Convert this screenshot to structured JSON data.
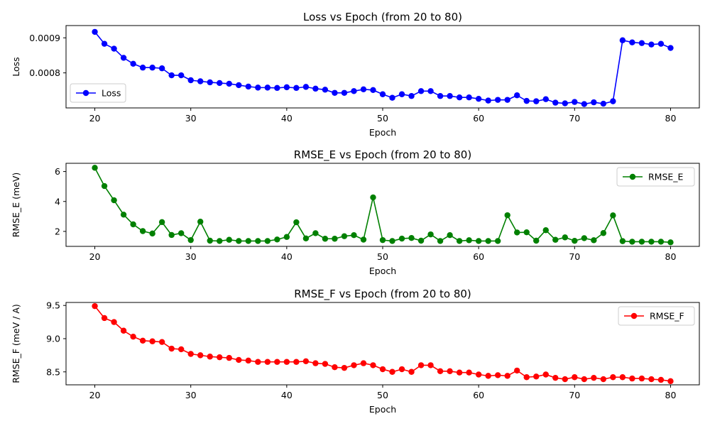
{
  "chart_data": [
    {
      "type": "line",
      "title": "Loss vs Epoch (from 20 to 80)",
      "xlabel": "Epoch",
      "ylabel": "Loss",
      "xlim": [
        17,
        83
      ],
      "ylim": [
        0.0007,
        0.000935
      ],
      "xticks": [
        20,
        30,
        40,
        50,
        60,
        70,
        80
      ],
      "yticks": [
        0.0008,
        0.0009
      ],
      "ytick_labels": [
        "0.0008",
        "0.0009"
      ],
      "legend_position": "lower-left",
      "grid": false,
      "series": [
        {
          "name": "Loss",
          "color": "#0000ff",
          "x": [
            20,
            21,
            22,
            23,
            24,
            25,
            26,
            27,
            28,
            29,
            30,
            31,
            32,
            33,
            34,
            35,
            36,
            37,
            38,
            39,
            40,
            41,
            42,
            43,
            44,
            45,
            46,
            47,
            48,
            49,
            50,
            51,
            52,
            53,
            54,
            55,
            56,
            57,
            58,
            59,
            60,
            61,
            62,
            63,
            64,
            65,
            66,
            67,
            68,
            69,
            70,
            71,
            72,
            73,
            74,
            75,
            76,
            77,
            78,
            79,
            80
          ],
          "values": [
            0.000917,
            0.000883,
            0.000869,
            0.000843,
            0.000826,
            0.000815,
            0.000815,
            0.000813,
            0.000793,
            0.000793,
            0.000779,
            0.000776,
            0.000773,
            0.000771,
            0.000769,
            0.000765,
            0.000761,
            0.000758,
            0.000758,
            0.000757,
            0.000759,
            0.000757,
            0.00076,
            0.000755,
            0.000752,
            0.000743,
            0.000743,
            0.000748,
            0.000753,
            0.000751,
            0.000739,
            0.000729,
            0.000739,
            0.000734,
            0.000748,
            0.000748,
            0.000734,
            0.000734,
            0.00073,
            0.00073,
            0.000726,
            0.000721,
            0.000723,
            0.000723,
            0.000736,
            0.00072,
            0.000719,
            0.000725,
            0.000715,
            0.000713,
            0.000717,
            0.000711,
            0.000716,
            0.000712,
            0.000719,
            0.000893,
            0.000887,
            0.000885,
            0.000881,
            0.000883,
            0.000871
          ]
        }
      ]
    },
    {
      "type": "line",
      "title": "RMSE_E vs Epoch (from 20 to 80)",
      "xlabel": "Epoch",
      "ylabel": "RMSE_E (meV)",
      "xlim": [
        17,
        83
      ],
      "ylim": [
        1.0,
        6.55
      ],
      "xticks": [
        20,
        30,
        40,
        50,
        60,
        70,
        80
      ],
      "yticks": [
        2,
        4,
        6
      ],
      "ytick_labels": [
        "2",
        "4",
        "6"
      ],
      "legend_position": "top-right",
      "grid": false,
      "series": [
        {
          "name": "RMSE_E",
          "color": "#008000",
          "x": [
            20,
            21,
            22,
            23,
            24,
            25,
            26,
            27,
            28,
            29,
            30,
            31,
            32,
            33,
            34,
            35,
            36,
            37,
            38,
            39,
            40,
            41,
            42,
            43,
            44,
            45,
            46,
            47,
            48,
            49,
            50,
            51,
            52,
            53,
            54,
            55,
            56,
            57,
            58,
            59,
            60,
            61,
            62,
            63,
            64,
            65,
            66,
            67,
            68,
            69,
            70,
            71,
            72,
            73,
            74,
            75,
            76,
            77,
            78,
            79,
            80
          ],
          "values": [
            6.25,
            5.03,
            4.08,
            3.12,
            2.47,
            2.02,
            1.86,
            2.62,
            1.76,
            1.88,
            1.42,
            2.65,
            1.38,
            1.36,
            1.44,
            1.36,
            1.36,
            1.36,
            1.36,
            1.46,
            1.63,
            2.61,
            1.53,
            1.88,
            1.51,
            1.51,
            1.68,
            1.75,
            1.45,
            4.27,
            1.42,
            1.36,
            1.52,
            1.56,
            1.38,
            1.8,
            1.36,
            1.75,
            1.36,
            1.41,
            1.36,
            1.36,
            1.36,
            3.08,
            1.93,
            1.94,
            1.38,
            2.08,
            1.44,
            1.6,
            1.37,
            1.55,
            1.41,
            1.89,
            3.07,
            1.35,
            1.31,
            1.31,
            1.31,
            1.31,
            1.27
          ]
        }
      ]
    },
    {
      "type": "line",
      "title": "RMSE_F vs Epoch (from 20 to 80)",
      "xlabel": "Epoch",
      "ylabel": "RMSE_F (meV / A)",
      "xlim": [
        17,
        83
      ],
      "ylim": [
        8.305,
        9.545
      ],
      "xticks": [
        20,
        30,
        40,
        50,
        60,
        70,
        80
      ],
      "yticks": [
        8.5,
        9.0,
        9.5
      ],
      "ytick_labels": [
        "8.5",
        "9.0",
        "9.5"
      ],
      "legend_position": "top-right",
      "grid": false,
      "series": [
        {
          "name": "RMSE_F",
          "color": "#ff0000",
          "x": [
            20,
            21,
            22,
            23,
            24,
            25,
            26,
            27,
            28,
            29,
            30,
            31,
            32,
            33,
            34,
            35,
            36,
            37,
            38,
            39,
            40,
            41,
            42,
            43,
            44,
            45,
            46,
            47,
            48,
            49,
            50,
            51,
            52,
            53,
            54,
            55,
            56,
            57,
            58,
            59,
            60,
            61,
            62,
            63,
            64,
            65,
            66,
            67,
            68,
            69,
            70,
            71,
            72,
            73,
            74,
            75,
            76,
            77,
            78,
            79,
            80
          ],
          "values": [
            9.49,
            9.31,
            9.25,
            9.12,
            9.03,
            8.97,
            8.96,
            8.95,
            8.85,
            8.84,
            8.77,
            8.75,
            8.73,
            8.72,
            8.71,
            8.68,
            8.67,
            8.65,
            8.65,
            8.65,
            8.65,
            8.65,
            8.66,
            8.63,
            8.62,
            8.57,
            8.56,
            8.6,
            8.63,
            8.6,
            8.54,
            8.5,
            8.54,
            8.5,
            8.6,
            8.6,
            8.51,
            8.51,
            8.49,
            8.49,
            8.46,
            8.44,
            8.45,
            8.44,
            8.52,
            8.42,
            8.43,
            8.46,
            8.41,
            8.39,
            8.42,
            8.39,
            8.41,
            8.39,
            8.42,
            8.42,
            8.4,
            8.4,
            8.39,
            8.38,
            8.36
          ]
        }
      ]
    }
  ]
}
